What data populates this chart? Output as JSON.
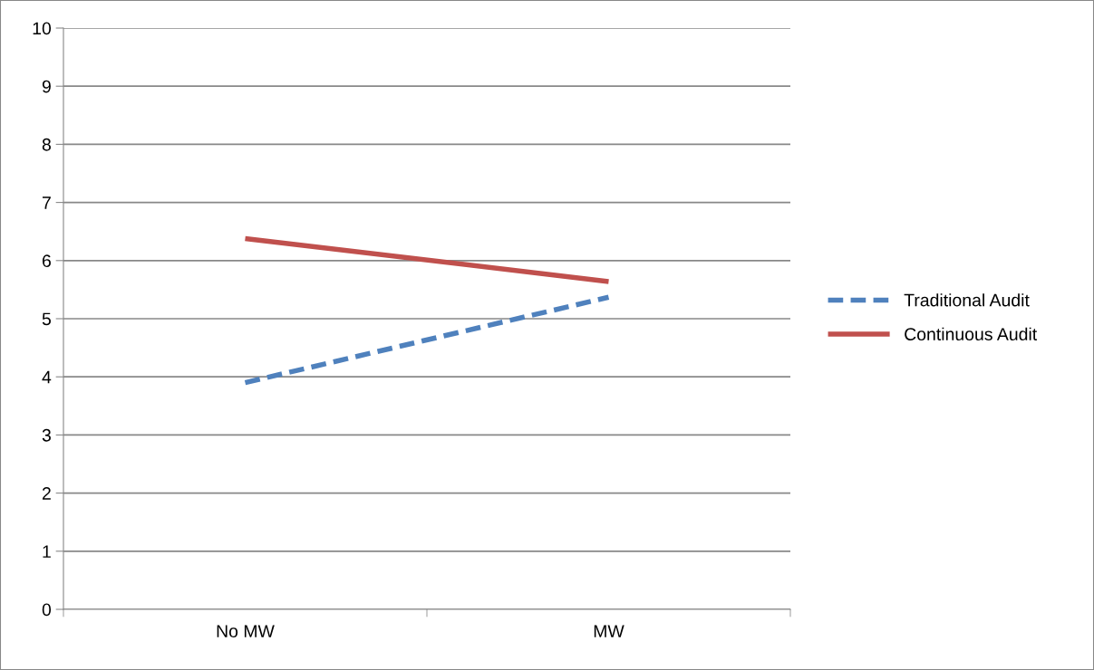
{
  "chart_data": {
    "type": "line",
    "categories": [
      "No MW",
      "MW"
    ],
    "series": [
      {
        "name": "Traditional Audit",
        "color": "#4f81bd",
        "values": [
          3.9,
          5.37
        ],
        "line_style": "dashed"
      },
      {
        "name": "Continuous Audit",
        "color": "#c0504d",
        "values": [
          6.38,
          5.64
        ],
        "line_style": "solid"
      }
    ],
    "ylim": [
      0,
      10
    ],
    "yticks": [
      0,
      1,
      2,
      3,
      4,
      5,
      6,
      7,
      8,
      9,
      10
    ],
    "grid": "y",
    "legend": "right",
    "marker": "none"
  }
}
